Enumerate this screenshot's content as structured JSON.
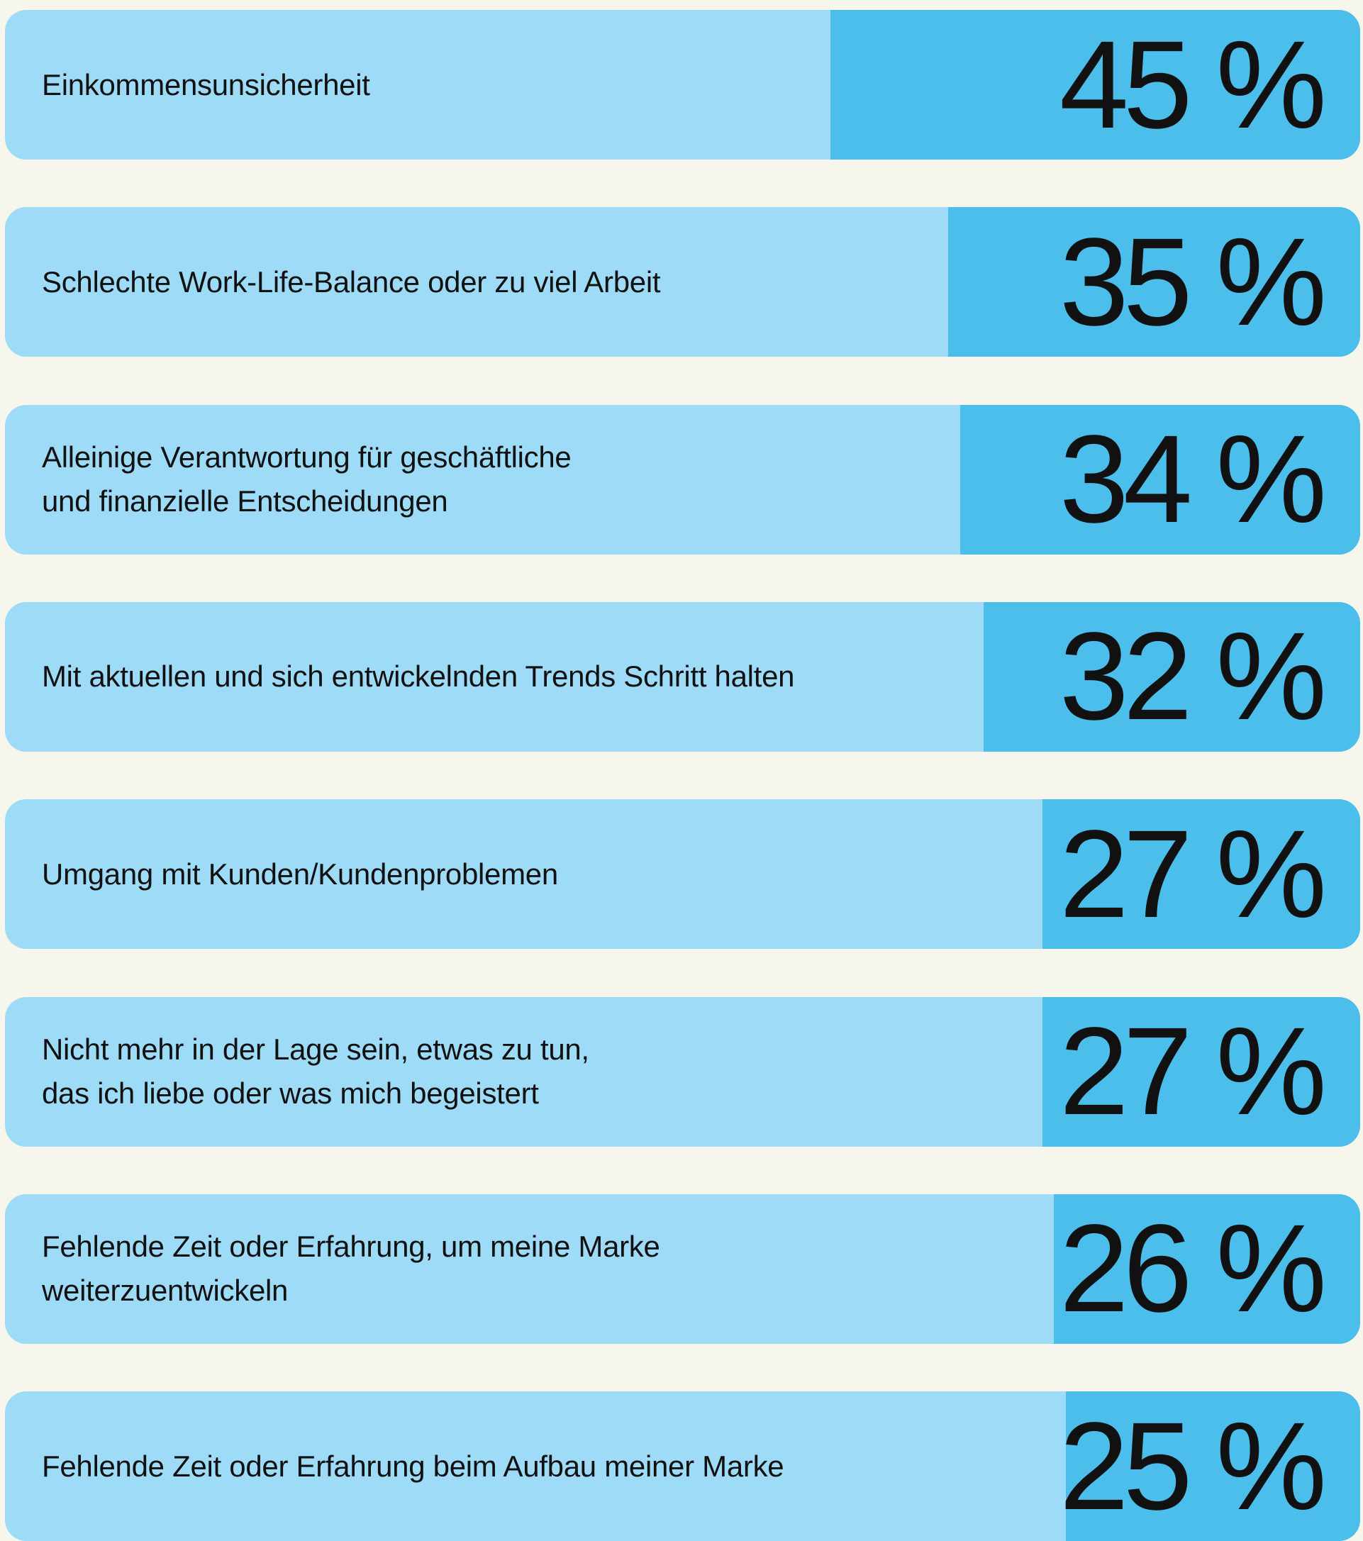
{
  "chart_data": {
    "type": "bar",
    "orientation": "horizontal",
    "categories": [
      "Einkommensunsicherheit",
      "Schlechte Work-Life-Balance oder zu viel Arbeit",
      "Alleinige Verantwortung für geschäftliche\nund finanzielle Entscheidungen",
      "Mit aktuellen und sich entwickelnden Trends Schritt halten",
      "Umgang mit Kunden/Kundenproblemen",
      "Nicht mehr in der Lage sein, etwas zu tun,\ndas ich liebe oder was mich begeistert",
      "Fehlende Zeit oder Erfahrung, um meine Marke\nweiterzuentwickeln",
      "Fehlende Zeit oder Erfahrung beim Aufbau meiner Marke"
    ],
    "values": [
      45,
      35,
      34,
      32,
      27,
      27,
      26,
      25
    ],
    "value_labels": [
      "45 %",
      "35 %",
      "34 %",
      "32 %",
      "27 %",
      "27 %",
      "26 %",
      "25 %"
    ],
    "color": "#4bbeeb",
    "track_color": "#9ddbf7"
  }
}
